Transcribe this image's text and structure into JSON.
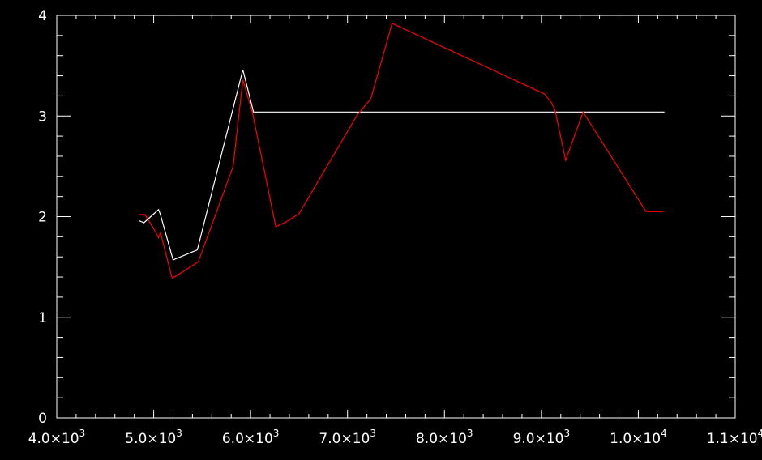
{
  "chart_data": {
    "type": "line",
    "title": "",
    "xlabel": "",
    "ylabel": "",
    "xlim": [
      4000,
      11000
    ],
    "ylim": [
      0,
      4
    ],
    "grid": false,
    "colors": {
      "background": "#000000",
      "axes": "#ffffff",
      "tick_text": "#ffffff"
    },
    "x_ticks": [
      {
        "value": 4000,
        "mantissa": "4.0",
        "exponent": "3"
      },
      {
        "value": 5000,
        "mantissa": "5.0",
        "exponent": "3"
      },
      {
        "value": 6000,
        "mantissa": "6.0",
        "exponent": "3"
      },
      {
        "value": 7000,
        "mantissa": "7.0",
        "exponent": "3"
      },
      {
        "value": 8000,
        "mantissa": "8.0",
        "exponent": "3"
      },
      {
        "value": 9000,
        "mantissa": "9.0",
        "exponent": "3"
      },
      {
        "value": 10000,
        "mantissa": "1.0",
        "exponent": "4"
      },
      {
        "value": 11000,
        "mantissa": "1.1",
        "exponent": "4"
      }
    ],
    "y_ticks": [
      {
        "value": 0,
        "label": "0"
      },
      {
        "value": 1,
        "label": "1"
      },
      {
        "value": 2,
        "label": "2"
      },
      {
        "value": 3,
        "label": "3"
      },
      {
        "value": 4,
        "label": "4"
      }
    ],
    "series": [
      {
        "color": "#ffffff",
        "x": [
          4850,
          4900,
          5050,
          5070,
          5200,
          5450,
          5920,
          6030,
          7000,
          8000,
          9000,
          10000,
          10270
        ],
        "y": [
          1.96,
          1.94,
          2.07,
          2.02,
          1.57,
          1.67,
          3.46,
          3.04,
          3.04,
          3.04,
          3.04,
          3.04,
          3.04
        ]
      },
      {
        "color": "#ff0000",
        "x": [
          4850,
          4910,
          5000,
          5050,
          5070,
          5190,
          5230,
          5460,
          5820,
          5920,
          6020,
          6260,
          6370,
          6500,
          7100,
          7240,
          7460,
          9030,
          9100,
          9140,
          9250,
          9430,
          10080,
          10260
        ],
        "y": [
          2.02,
          2.02,
          1.88,
          1.79,
          1.84,
          1.39,
          1.41,
          1.55,
          2.5,
          3.36,
          3.03,
          1.9,
          1.95,
          2.03,
          3.01,
          3.17,
          3.92,
          3.22,
          3.14,
          3.06,
          2.56,
          3.04,
          2.05,
          2.05
        ]
      }
    ]
  }
}
